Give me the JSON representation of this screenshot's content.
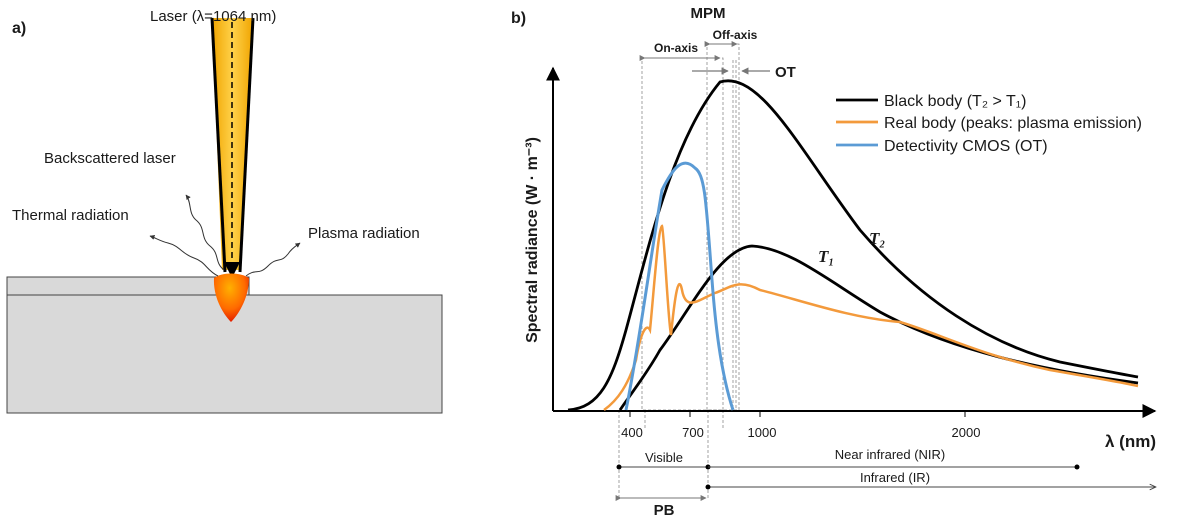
{
  "panel_a": {
    "label": "a)",
    "laser": "Laser (λ=1064 nm)",
    "backscattered": "Backscattered laser",
    "thermal": "Thermal radiation",
    "plasma": "Plasma radiation"
  },
  "panel_b": {
    "label": "b)",
    "mpm": "MPM",
    "on_axis": "On-axis",
    "off_axis": "Off-axis",
    "ot": "OT",
    "ylabel": "Spectral radiance (W · m⁻³)",
    "xlabel": "λ (nm)",
    "ticks": [
      "400",
      "700",
      "1000",
      "2000"
    ],
    "legend": {
      "black": "Black body (T₂ > T₁)",
      "real": "Real body (peaks: plasma emission)",
      "cmos": "Detectivity CMOS (OT)"
    },
    "t2": "T₂",
    "t1": "T₁",
    "visible": "Visible",
    "nir": "Near infrared (NIR)",
    "ir": "Infrared (IR)",
    "pb": "PB",
    "colors": {
      "black": "#000000",
      "real": "#f39a3c",
      "cmos": "#5b9bd5"
    }
  }
}
